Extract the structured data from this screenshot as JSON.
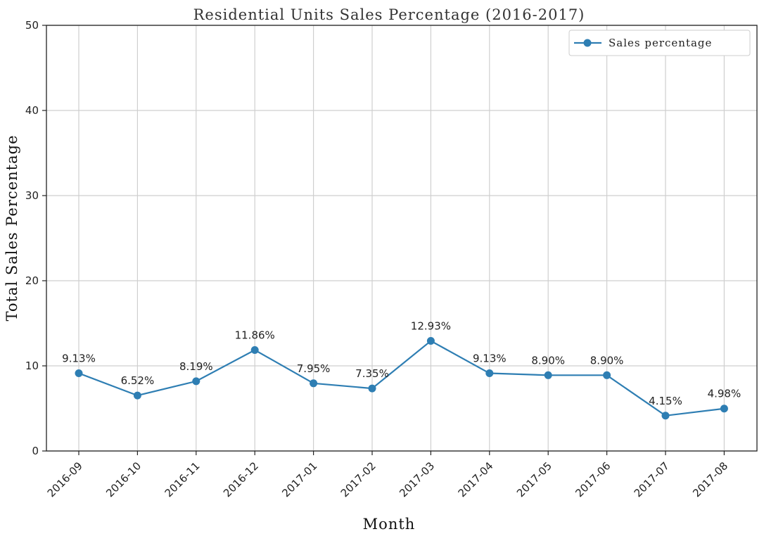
{
  "chart_data": {
    "type": "line",
    "title": "Residential Units Sales Percentage (2016-2017)",
    "xlabel": "Month",
    "ylabel": "Total Sales Percentage",
    "ylim": [
      0,
      50
    ],
    "yticks": [
      0,
      10,
      20,
      30,
      40,
      50
    ],
    "grid": true,
    "legend_position": "top-right",
    "categories": [
      "2016-09",
      "2016-10",
      "2016-11",
      "2016-12",
      "2017-01",
      "2017-02",
      "2017-03",
      "2017-04",
      "2017-05",
      "2017-06",
      "2017-07",
      "2017-08"
    ],
    "series": [
      {
        "name": "Sales percentage",
        "color": "#2e7eb3",
        "values": [
          9.13,
          6.52,
          8.19,
          11.86,
          7.95,
          7.35,
          12.93,
          9.13,
          8.9,
          8.9,
          4.15,
          4.98
        ],
        "labels": [
          "9.13%",
          "6.52%",
          "8.19%",
          "11.86%",
          "7.95%",
          "7.35%",
          "12.93%",
          "9.13%",
          "8.90%",
          "8.90%",
          "4.15%",
          "4.98%"
        ]
      }
    ]
  }
}
